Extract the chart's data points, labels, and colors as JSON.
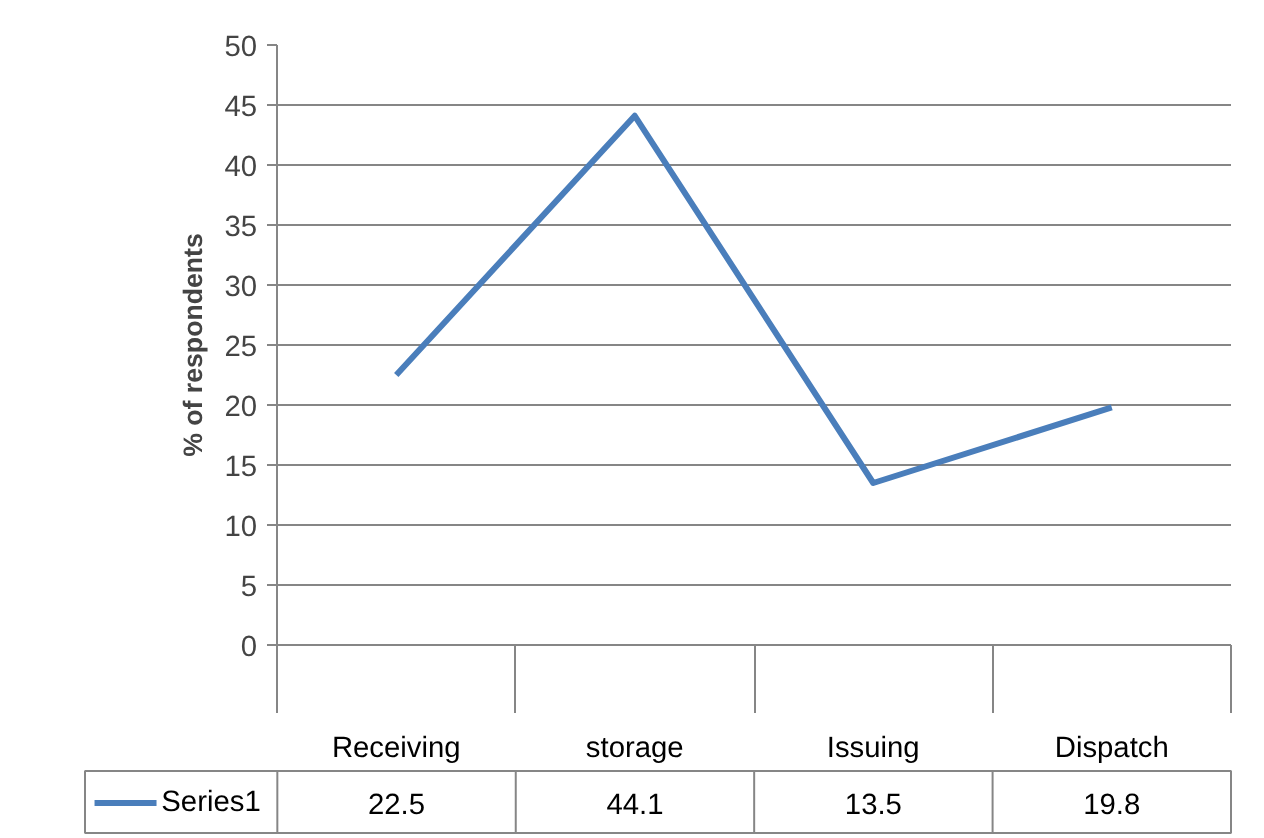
{
  "chart_data": {
    "type": "line",
    "ylabel": "% of respondents",
    "categories": [
      "Receiving",
      "storage",
      "Issuing",
      "Dispatch"
    ],
    "series": [
      {
        "name": "Series1",
        "color": "#4a7ebb",
        "values": [
          22.5,
          44.1,
          13.5,
          19.8
        ]
      }
    ],
    "ylim": [
      0,
      50
    ],
    "yticks": [
      0,
      5,
      10,
      15,
      20,
      25,
      30,
      35,
      40,
      45,
      50
    ],
    "grid": "y",
    "data_labels": true,
    "legend": "bottom"
  }
}
